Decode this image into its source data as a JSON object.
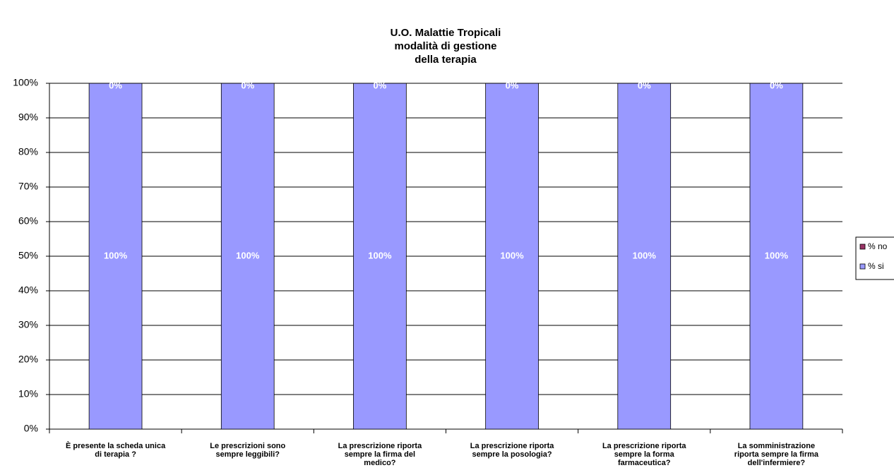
{
  "chart_data": {
    "type": "stacked_bar",
    "title": [
      "U.O. Malattie Tropicali",
      "modalità di gestione",
      "della terapia"
    ],
    "categories": [
      [
        "È presente la scheda unica",
        "di terapia ?"
      ],
      [
        "Le prescrizioni sono",
        "sempre leggibili?"
      ],
      [
        "La prescrizione riporta",
        "sempre la firma del",
        "medico?"
      ],
      [
        "La prescrizione riporta",
        "sempre la posologia?"
      ],
      [
        "La prescrizione riporta",
        "sempre la forma",
        "farmaceutica?"
      ],
      [
        "La somministrazione",
        "riporta sempre la firma",
        "dell'infermiere?"
      ]
    ],
    "series": [
      {
        "name": "% si",
        "color": "#9999ff",
        "values": [
          100,
          100,
          100,
          100,
          100,
          100
        ],
        "value_labels": [
          "100%",
          "100%",
          "100%",
          "100%",
          "100%",
          "100%"
        ]
      },
      {
        "name": "% no",
        "color": "#993366",
        "values": [
          0,
          0,
          0,
          0,
          0,
          0
        ],
        "value_labels": [
          "0%",
          "0%",
          "0%",
          "0%",
          "0%",
          "0%"
        ]
      }
    ],
    "ylim": [
      0,
      100
    ],
    "yticks": [
      {
        "value": 0,
        "label": "0%"
      },
      {
        "value": 10,
        "label": "10%"
      },
      {
        "value": 20,
        "label": "20%"
      },
      {
        "value": 30,
        "label": "30%"
      },
      {
        "value": 40,
        "label": "40%"
      },
      {
        "value": 50,
        "label": "50%"
      },
      {
        "value": 60,
        "label": "60%"
      },
      {
        "value": 70,
        "label": "70%"
      },
      {
        "value": 80,
        "label": "80%"
      },
      {
        "value": 90,
        "label": "90%"
      },
      {
        "value": 100,
        "label": "100%"
      }
    ],
    "grid": true,
    "legend": "right"
  }
}
